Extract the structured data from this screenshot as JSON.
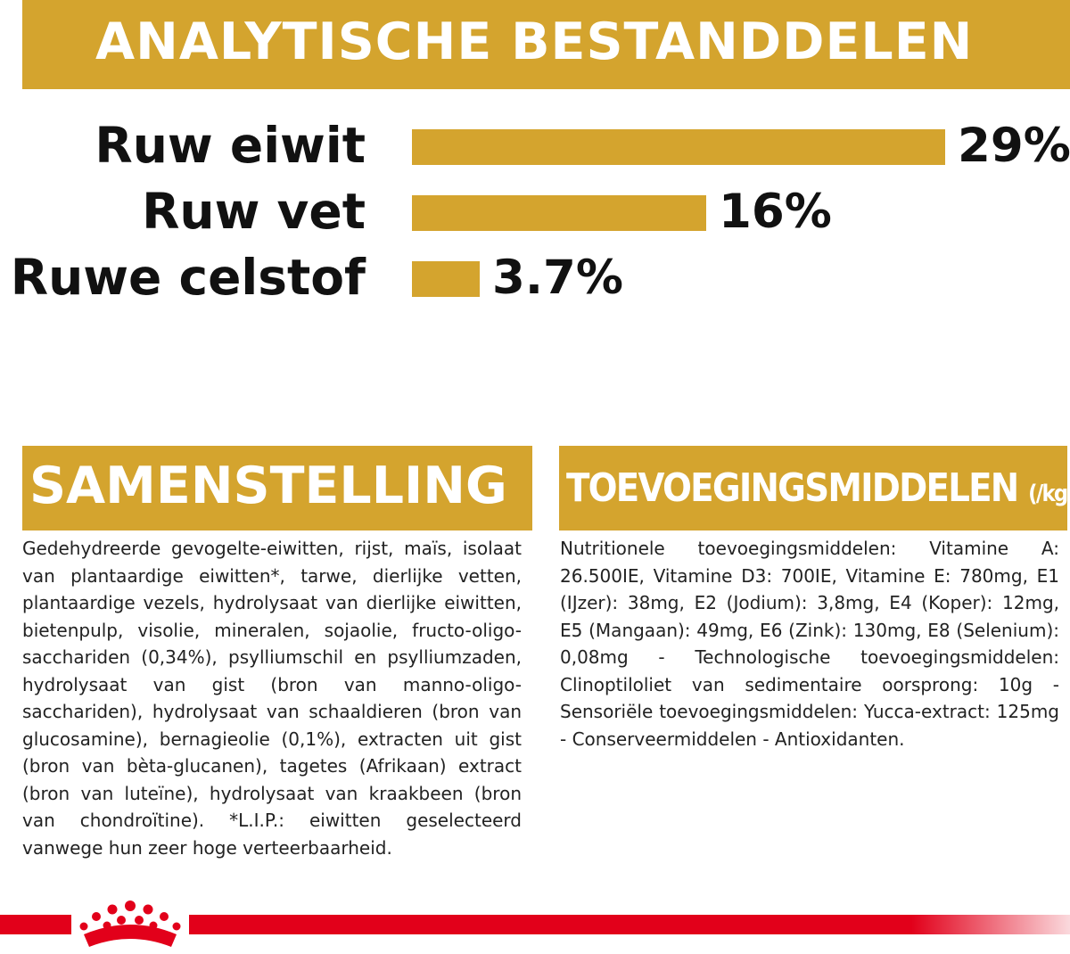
{
  "header": {
    "title": "ANALYTISCHE BESTANDDELEN"
  },
  "chart_data": {
    "type": "bar",
    "categories": [
      "Ruw eiwit",
      "Ruw vet",
      "Ruwe celstof"
    ],
    "values": [
      29,
      16,
      3.7
    ],
    "value_labels": [
      "29%",
      "16%",
      "3.7%"
    ],
    "unit": "%",
    "orientation": "horizontal"
  },
  "composition": {
    "title": "SAMENSTELLING",
    "text": "Gedehydreerde gevogelte-eiwitten, rijst, maïs, isolaat van plantaardige eiwitten*, tarwe, dierlijke vetten, plantaardige vezels, hydrolysaat van dierlijke eiwitten, bietenpulp, visolie, mineralen, sojaolie, fructo-oligo-sacchariden (0,34%), psylliumschil en psylliumzaden, hydrolysaat van gist (bron van manno-oligo-sacchariden), hydrolysaat van schaaldieren (bron van glucosamine), bernagieolie (0,1%), extracten uit gist (bron van bèta-glucanen), tagetes (Afrikaan) extract (bron van luteïne), hydrolysaat van kraakbeen (bron van chondroïtine). *L.I.P.: eiwitten geselecteerd vanwege hun zeer hoge verteerbaarheid."
  },
  "additives": {
    "title": "TOEVOEGINGSMIDDELEN",
    "title_unit": "(/kg)",
    "text": "Nutritionele toevoegingsmiddelen: Vitamine A: 26.500IE, Vitamine D3: 700IE, Vitamine E: 780mg, E1 (IJzer): 38mg, E2 (Jodium): 3,8mg, E4 (Koper): 12mg, E5 (Mangaan): 49mg, E6 (Zink): 130mg, E8 (Selenium): 0,08mg - Technologische toevoegingsmiddelen: Clinoptiloliet van sedimentaire oorsprong: 10g - Sensoriële toevoegingsmiddelen: Yucca-extract: 125mg - Conserveermiddelen - Antioxidanten."
  },
  "colors": {
    "gold": "#d4a42e",
    "brand_red": "#e2001a",
    "text": "#1a1a1a"
  },
  "footer": {
    "logo": "crown-icon"
  }
}
